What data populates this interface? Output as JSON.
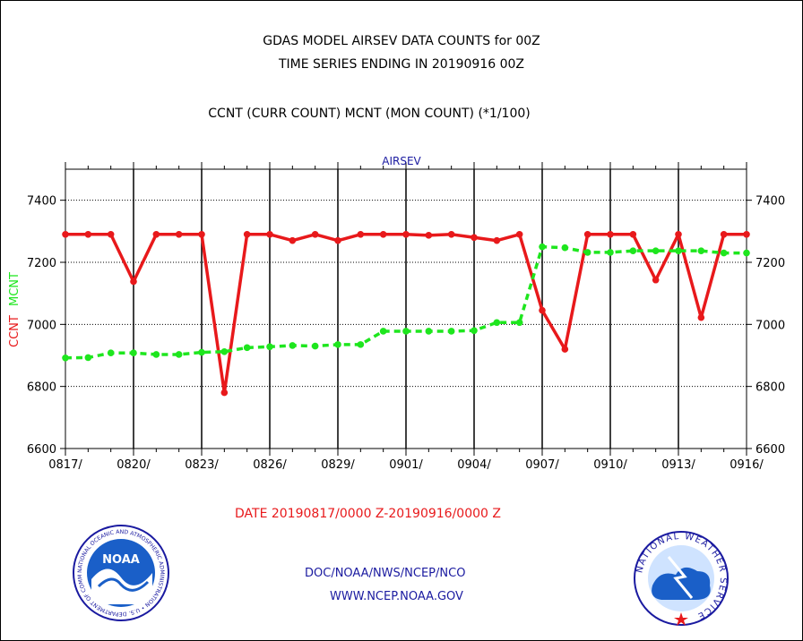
{
  "header": {
    "line1": "GDAS MODEL AIRSEV DATA COUNTS for 00Z",
    "line2": "TIME SERIES ENDING IN 20190916 00Z",
    "line3": "CCNT (CURR COUNT) MCNT (MON COUNT) (*1/100)"
  },
  "chart_data": {
    "type": "line",
    "title": "AIRSEV",
    "ylabel_ccnt": "CCNT",
    "ylabel_mcnt": "MCNT",
    "ylim": [
      6600,
      7500
    ],
    "yticks": [
      6600,
      6800,
      7000,
      7200,
      7400
    ],
    "xticks": [
      "0817/",
      "0820/",
      "0823/",
      "0826/",
      "0829/",
      "0901/",
      "0904/",
      "0907/",
      "0910/",
      "0913/",
      "0916/"
    ],
    "xtick_day_index": [
      0,
      3,
      6,
      9,
      12,
      15,
      18,
      21,
      24,
      27,
      30
    ],
    "grid": true,
    "x_days": [
      0,
      1,
      2,
      3,
      4,
      5,
      6,
      7,
      8,
      9,
      10,
      11,
      12,
      13,
      14,
      15,
      16,
      17,
      18,
      19,
      20,
      21,
      22,
      23,
      24,
      25,
      26,
      27,
      28,
      29,
      30
    ],
    "series": [
      {
        "name": "CCNT",
        "color": "#e8191b",
        "style": "solid",
        "values": [
          7290,
          7290,
          7290,
          7138,
          7290,
          7290,
          7290,
          6780,
          7290,
          7290,
          7270,
          7290,
          7270,
          7290,
          7290,
          7290,
          7287,
          7290,
          7280,
          7270,
          7290,
          7045,
          6920,
          7290,
          7290,
          7290,
          7143,
          7290,
          7022,
          7290,
          7290
        ]
      },
      {
        "name": "MCNT",
        "color": "#1ee61e",
        "style": "dashed",
        "values": [
          6892,
          6893,
          6908,
          6908,
          6903,
          6903,
          6910,
          6912,
          6925,
          6928,
          6932,
          6930,
          6935,
          6935,
          6978,
          6978,
          6978,
          6978,
          6980,
          7006,
          7006,
          7250,
          7247,
          7232,
          7232,
          7237,
          7237,
          7237,
          7237,
          7230,
          7230
        ]
      }
    ]
  },
  "footer": {
    "date_range": "DATE 20190817/0000 Z-20190916/0000 Z",
    "org": "DOC/NOAA/NWS/NCEP/NCO",
    "url": "WWW.NCEP.NOAA.GOV"
  },
  "logos": {
    "noaa_text": "NOAA",
    "noaa_ring": "NATIONAL OCEANIC AND ATMOSPHERIC ADMINISTRATION • U.S. DEPARTMENT OF COMMERCE",
    "nws_ring": "NATIONAL WEATHER SERVICE"
  }
}
